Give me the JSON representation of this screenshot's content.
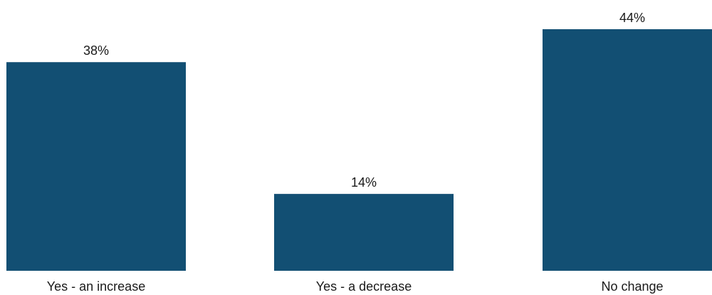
{
  "chart_data": {
    "type": "bar",
    "categories": [
      "Yes - an increase",
      "Yes - a decrease",
      "No change"
    ],
    "values": [
      38,
      14,
      44
    ],
    "value_labels": [
      "38%",
      "14%",
      "44%"
    ],
    "ylim": [
      0,
      44
    ],
    "bar_color": "#124f73",
    "grid": false,
    "legend": "none"
  }
}
